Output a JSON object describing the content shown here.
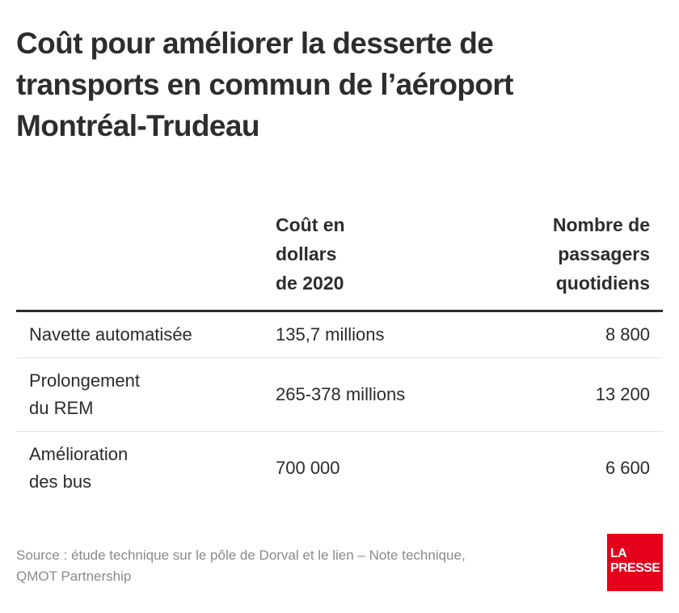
{
  "title": {
    "line1": "Coût pour améliorer la desserte de",
    "line2": "transports en commun de l’aéroport",
    "line3": "Montréal-Trudeau"
  },
  "chart_data": {
    "type": "table",
    "columns": [
      {
        "label_lines": [
          ""
        ]
      },
      {
        "label_lines": [
          "Coût en",
          "dollars",
          "de 2020"
        ]
      },
      {
        "label_lines": [
          "Nombre de",
          "passagers",
          "quotidiens"
        ]
      }
    ],
    "rows": [
      {
        "name_lines": [
          "Navette automatisée"
        ],
        "cost": "135,7 millions",
        "passengers": "8 800"
      },
      {
        "name_lines": [
          "Prolongement",
          "du REM"
        ],
        "cost": "265-378 millions",
        "passengers": "13 200"
      },
      {
        "name_lines": [
          "Amélioration",
          "des bus"
        ],
        "cost": "700 000",
        "passengers": "6 600"
      }
    ]
  },
  "source": {
    "line1": "Source : étude technique sur le pôle de Dorval et le lien – Note technique,",
    "line2": "QMOT Partnership"
  },
  "logo": {
    "line1": "LA",
    "line2": "PRESSE",
    "color": "#e4001b"
  },
  "colors": {
    "text": "#2d2d2d",
    "source_text": "#8a8a8a",
    "row_divider": "#e3e3e3",
    "header_rule": "#2d2d2d"
  }
}
